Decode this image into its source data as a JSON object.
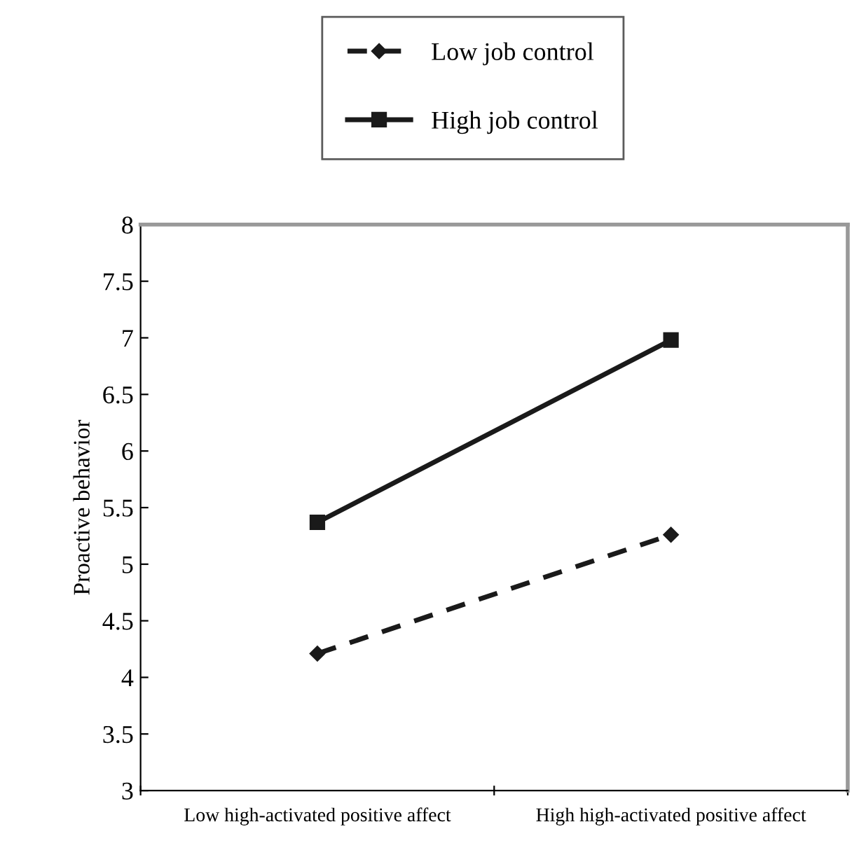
{
  "chart_data": {
    "type": "line",
    "ylabel": "Proactive behavior",
    "categories": [
      "Low high-activated positive affect",
      "High high-activated positive affect"
    ],
    "series": [
      {
        "name": "Low job control",
        "color": "#1a1a1a",
        "values": [
          4.21,
          5.26
        ],
        "marker": "diamond",
        "line_style": "dashed"
      },
      {
        "name": "High job control",
        "color": "#1a1a1a",
        "values": [
          5.37,
          6.98
        ],
        "marker": "square",
        "line_style": "solid"
      }
    ],
    "ylim": [
      3,
      8
    ],
    "yticks": [
      3,
      3.5,
      4,
      4.5,
      5,
      5.5,
      6,
      6.5,
      7,
      7.5,
      8
    ],
    "grid": false,
    "legend": "top"
  }
}
